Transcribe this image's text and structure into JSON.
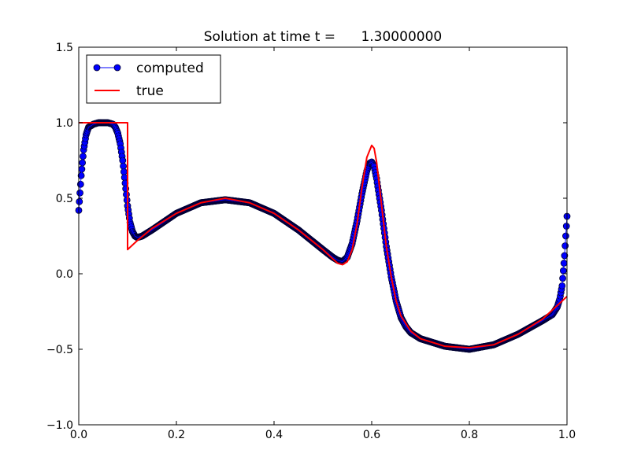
{
  "chart_data": {
    "type": "line",
    "title": "Solution at time t =      1.30000000",
    "xlabel": "",
    "ylabel": "",
    "xlim": [
      0.0,
      1.0
    ],
    "ylim": [
      -1.0,
      1.5
    ],
    "x_ticks": [
      "0.0",
      "0.2",
      "0.4",
      "0.6",
      "0.8",
      "1.0"
    ],
    "y_ticks": [
      "−1.0",
      "−0.5",
      "0.0",
      "0.5",
      "1.0",
      "1.5"
    ],
    "grid": false,
    "legend_position": "top-left",
    "series": [
      {
        "name": "computed",
        "style": "line-with-circle-markers",
        "color": "#0000ff",
        "marker_edge_color": "#000033",
        "x": [
          0.0,
          0.005,
          0.01,
          0.015,
          0.02,
          0.03,
          0.04,
          0.05,
          0.06,
          0.07,
          0.075,
          0.08,
          0.085,
          0.09,
          0.095,
          0.1,
          0.105,
          0.11,
          0.115,
          0.12,
          0.13,
          0.15,
          0.2,
          0.25,
          0.3,
          0.35,
          0.4,
          0.45,
          0.5,
          0.52,
          0.53,
          0.54,
          0.55,
          0.56,
          0.57,
          0.58,
          0.59,
          0.595,
          0.6,
          0.605,
          0.61,
          0.62,
          0.63,
          0.64,
          0.65,
          0.66,
          0.67,
          0.68,
          0.7,
          0.75,
          0.8,
          0.85,
          0.9,
          0.95,
          0.97,
          0.98,
          0.985,
          0.99,
          0.995,
          1.0
        ],
        "y": [
          0.42,
          0.65,
          0.82,
          0.92,
          0.97,
          0.99,
          1.0,
          1.0,
          1.0,
          0.99,
          0.97,
          0.93,
          0.86,
          0.75,
          0.6,
          0.45,
          0.34,
          0.28,
          0.25,
          0.24,
          0.25,
          0.29,
          0.4,
          0.47,
          0.49,
          0.47,
          0.4,
          0.29,
          0.16,
          0.11,
          0.09,
          0.08,
          0.11,
          0.2,
          0.35,
          0.53,
          0.68,
          0.73,
          0.74,
          0.71,
          0.63,
          0.42,
          0.18,
          -0.02,
          -0.18,
          -0.29,
          -0.35,
          -0.39,
          -0.43,
          -0.48,
          -0.5,
          -0.47,
          -0.4,
          -0.31,
          -0.27,
          -0.22,
          -0.17,
          -0.08,
          0.12,
          0.38
        ]
      },
      {
        "name": "true",
        "style": "line",
        "color": "#ff0000",
        "x": [
          0.0,
          0.1,
          0.1,
          0.1,
          0.12,
          0.15,
          0.2,
          0.25,
          0.3,
          0.35,
          0.4,
          0.45,
          0.5,
          0.52,
          0.53,
          0.54,
          0.55,
          0.56,
          0.57,
          0.58,
          0.59,
          0.6,
          0.605,
          0.61,
          0.62,
          0.63,
          0.64,
          0.65,
          0.66,
          0.68,
          0.7,
          0.75,
          0.8,
          0.85,
          0.9,
          0.95,
          1.0
        ],
        "y": [
          1.0,
          1.0,
          0.7,
          0.16,
          0.22,
          0.3,
          0.4,
          0.47,
          0.5,
          0.47,
          0.4,
          0.29,
          0.16,
          0.1,
          0.07,
          0.06,
          0.08,
          0.16,
          0.33,
          0.57,
          0.77,
          0.85,
          0.83,
          0.74,
          0.46,
          0.18,
          -0.02,
          -0.18,
          -0.28,
          -0.38,
          -0.43,
          -0.48,
          -0.49,
          -0.47,
          -0.4,
          -0.3,
          -0.15
        ]
      }
    ]
  }
}
